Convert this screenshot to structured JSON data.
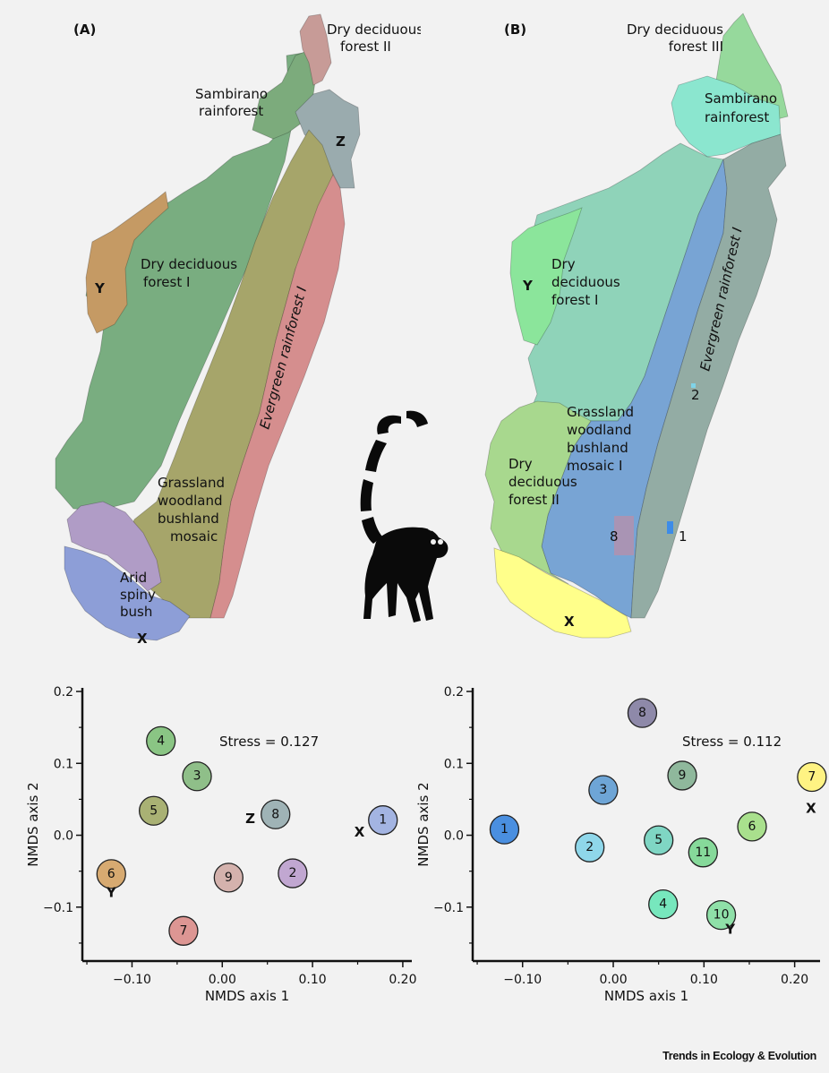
{
  "panel_a": {
    "label": "(A)",
    "regions": {
      "dry_deciduous_ii": [
        "Dry deciduous",
        "forest II"
      ],
      "sambirano": [
        "Sambirano",
        "rainforest"
      ],
      "dry_deciduous_i": [
        "Dry deciduous",
        "forest I"
      ],
      "evergreen": "Evergreen rainforest I",
      "grassland": [
        "Grassland",
        "woodland",
        "bushland",
        "mosaic"
      ],
      "arid": [
        "Arid",
        "spiny",
        "bush"
      ]
    },
    "markers": {
      "x": "X",
      "y": "Y",
      "z": "Z"
    },
    "colors": {
      "dry_deciduous_ii": "#c79b97",
      "sambirano": "#7cab7c",
      "dry_deciduous_i": "#79ad80",
      "evergreen": "#d58e8e",
      "grassland": "#a6a56a",
      "arid": "#8d9ed7",
      "arid_upper": "#b09cc6",
      "z_zone": "#9aabae",
      "y_zone": "#c59a64"
    }
  },
  "panel_b": {
    "label": "(B)",
    "regions": {
      "dry_deciduous_iii": [
        "Dry deciduous",
        "forest III"
      ],
      "sambirano": [
        "Sambirano",
        "rainforest"
      ],
      "dry_deciduous_i": [
        "Dry",
        "deciduous",
        "forest I"
      ],
      "evergreen": "Evergreen rainforest I",
      "grassland": [
        "Grassland",
        "woodland",
        "bushland",
        "mosaic I"
      ],
      "dry_deciduous_ii": [
        "Dry",
        "deciduous",
        "forest II"
      ]
    },
    "markers": {
      "x": "X",
      "y": "Y",
      "n1": "1",
      "n2": "2",
      "n8": "8"
    },
    "colors": {
      "dry_deciduous_iii": "#96d99c",
      "sambirano": "#8be6cf",
      "dry_deciduous_i": "#8fd3b9",
      "y_zone": "#8be59b",
      "evergreen": "#93aca4",
      "grassland": "#78a4d4",
      "dry_deciduous_ii": "#a8d88e",
      "arid": "#ffff8a"
    }
  },
  "chart_data": [
    {
      "type": "scatter",
      "xlabel": "NMDS axis 1",
      "ylabel": "NMDS axis 2",
      "annotation": "Stress = 0.127",
      "xticks": [
        "−0.10",
        "0.00",
        "0.10",
        "0.20"
      ],
      "yticks": [
        "0.2",
        "0.1",
        "0.0",
        "−0.1"
      ],
      "xlim": [
        -0.155,
        0.21
      ],
      "ylim": [
        -0.175,
        0.205
      ],
      "points": [
        {
          "label": "1",
          "x": 0.178,
          "y": 0.021,
          "color": "#a3b4e2"
        },
        {
          "label": "2",
          "x": 0.078,
          "y": -0.053,
          "color": "#c1a7d1"
        },
        {
          "label": "3",
          "x": -0.028,
          "y": 0.082,
          "color": "#8fbf89"
        },
        {
          "label": "4",
          "x": -0.068,
          "y": 0.131,
          "color": "#8ac584"
        },
        {
          "label": "5",
          "x": -0.076,
          "y": 0.034,
          "color": "#a9b174"
        },
        {
          "label": "6",
          "x": -0.123,
          "y": -0.054,
          "color": "#d7aa71"
        },
        {
          "label": "7",
          "x": -0.043,
          "y": -0.133,
          "color": "#dd9693"
        },
        {
          "label": "8",
          "x": 0.059,
          "y": 0.029,
          "color": "#9fb3b6"
        },
        {
          "label": "9",
          "x": 0.007,
          "y": -0.059,
          "color": "#d4b2ad"
        }
      ],
      "markers": [
        {
          "label": "X",
          "x": 0.152,
          "y": -0.002
        },
        {
          "label": "Y",
          "x": -0.123,
          "y": -0.086
        },
        {
          "label": "Z",
          "x": 0.031,
          "y": 0.017
        }
      ]
    },
    {
      "type": "scatter",
      "xlabel": "NMDS axis 1",
      "ylabel": "NMDS axis 2",
      "annotation": "Stress = 0.112",
      "xticks": [
        "−0.10",
        "0.00",
        "0.10",
        "0.20"
      ],
      "yticks": [
        "0.2",
        "0.1",
        "0.0",
        "−0.1"
      ],
      "xlim": [
        -0.155,
        0.228
      ],
      "ylim": [
        -0.175,
        0.205
      ],
      "points": [
        {
          "label": "1",
          "x": -0.12,
          "y": 0.008,
          "color": "#4a8fe0"
        },
        {
          "label": "2",
          "x": -0.026,
          "y": -0.017,
          "color": "#8fd7ea"
        },
        {
          "label": "3",
          "x": -0.011,
          "y": 0.063,
          "color": "#6ea5d6"
        },
        {
          "label": "4",
          "x": 0.055,
          "y": -0.096,
          "color": "#77e7bd"
        },
        {
          "label": "5",
          "x": 0.05,
          "y": -0.007,
          "color": "#7fd6c4"
        },
        {
          "label": "6",
          "x": 0.153,
          "y": 0.012,
          "color": "#a9e08d"
        },
        {
          "label": "7",
          "x": 0.219,
          "y": 0.081,
          "color": "#fff383"
        },
        {
          "label": "8",
          "x": 0.032,
          "y": 0.17,
          "color": "#8e89a9"
        },
        {
          "label": "9",
          "x": 0.076,
          "y": 0.083,
          "color": "#8fb89c"
        },
        {
          "label": "10",
          "x": 0.119,
          "y": -0.111,
          "color": "#8fe0a8"
        },
        {
          "label": "11",
          "x": 0.099,
          "y": -0.024,
          "color": "#86d99a"
        }
      ],
      "markers": [
        {
          "label": "X",
          "x": 0.218,
          "y": 0.031
        },
        {
          "label": "Y",
          "x": 0.129,
          "y": -0.137
        }
      ]
    }
  ],
  "footer": "Trends in Ecology & Evolution"
}
